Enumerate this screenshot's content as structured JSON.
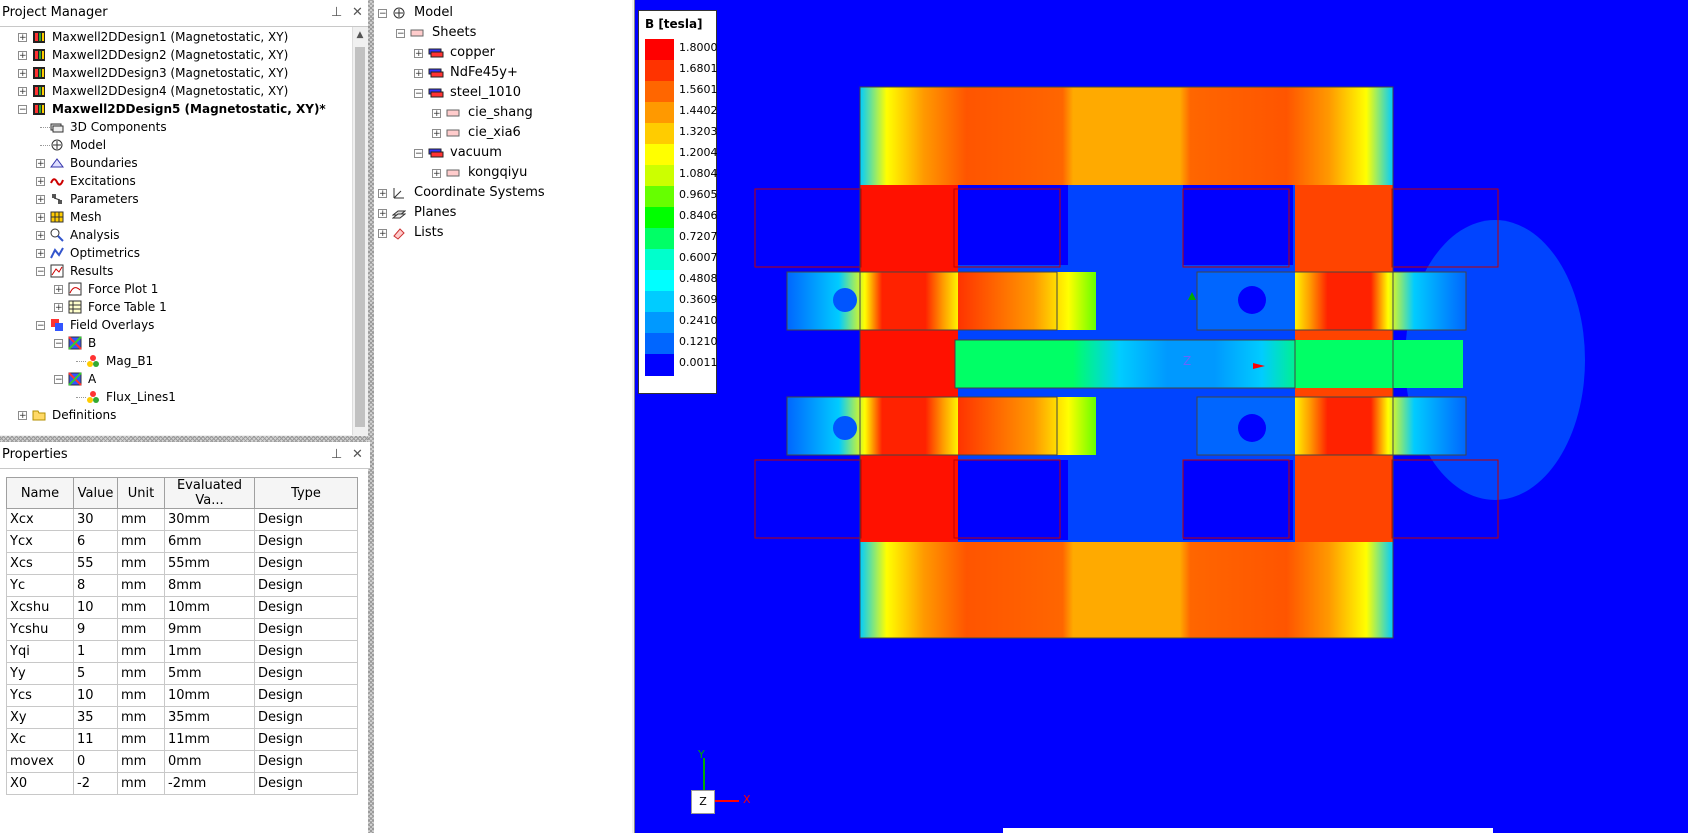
{
  "project_manager": {
    "title": "Project Manager",
    "designs": [
      {
        "label": "Maxwell2DDesign1 (Magnetostatic, XY)"
      },
      {
        "label": "Maxwell2DDesign2 (Magnetostatic, XY)"
      },
      {
        "label": "Maxwell2DDesign3 (Magnetostatic, XY)"
      },
      {
        "label": "Maxwell2DDesign4 (Magnetostatic, XY)"
      },
      {
        "label": "Maxwell2DDesign5 (Magnetostatic, XY)*"
      }
    ],
    "children": [
      {
        "label": "3D Components"
      },
      {
        "label": "Model"
      },
      {
        "label": "Boundaries"
      },
      {
        "label": "Excitations"
      },
      {
        "label": "Parameters"
      },
      {
        "label": "Mesh"
      },
      {
        "label": "Analysis"
      },
      {
        "label": "Optimetrics"
      },
      {
        "label": "Results"
      },
      {
        "label": "Force Plot 1"
      },
      {
        "label": "Force Table 1"
      },
      {
        "label": "Field Overlays"
      },
      {
        "label": "B"
      },
      {
        "label": "Mag_B1"
      },
      {
        "label": "A"
      },
      {
        "label": "Flux_Lines1"
      },
      {
        "label": "Definitions"
      }
    ]
  },
  "properties": {
    "title": "Properties",
    "columns": [
      "Name",
      "Value",
      "Unit",
      "Evaluated Va...",
      "Type"
    ],
    "rows": [
      [
        "Xcx",
        "30",
        "mm",
        "30mm",
        "Design"
      ],
      [
        "Ycx",
        "6",
        "mm",
        "6mm",
        "Design"
      ],
      [
        "Xcs",
        "55",
        "mm",
        "55mm",
        "Design"
      ],
      [
        "Yc",
        "8",
        "mm",
        "8mm",
        "Design"
      ],
      [
        "Xcshu",
        "10",
        "mm",
        "10mm",
        "Design"
      ],
      [
        "Ycshu",
        "9",
        "mm",
        "9mm",
        "Design"
      ],
      [
        "Yqi",
        "1",
        "mm",
        "1mm",
        "Design"
      ],
      [
        "Yy",
        "5",
        "mm",
        "5mm",
        "Design"
      ],
      [
        "Ycs",
        "10",
        "mm",
        "10mm",
        "Design"
      ],
      [
        "Xy",
        "35",
        "mm",
        "35mm",
        "Design"
      ],
      [
        "Xc",
        "11",
        "mm",
        "11mm",
        "Design"
      ],
      [
        "movex",
        "0",
        "mm",
        "0mm",
        "Design"
      ],
      [
        "X0",
        "-2",
        "mm",
        "-2mm",
        "Design"
      ]
    ]
  },
  "model_tree": {
    "items": [
      {
        "label": "Model"
      },
      {
        "label": "Sheets"
      },
      {
        "label": "copper"
      },
      {
        "label": "NdFe45y+"
      },
      {
        "label": "steel_1010"
      },
      {
        "label": "cie_shang"
      },
      {
        "label": "cie_xia6"
      },
      {
        "label": "vacuum"
      },
      {
        "label": "kongqiyu"
      },
      {
        "label": "Coordinate Systems"
      },
      {
        "label": "Planes"
      },
      {
        "label": "Lists"
      }
    ]
  },
  "legend": {
    "title": "B [tesla]",
    "levels": [
      "1.8000",
      "1.6801",
      "1.5601",
      "1.4402",
      "1.3203",
      "1.2004",
      "1.0804",
      "0.9605",
      "0.8406",
      "0.7207",
      "0.6007",
      "0.4808",
      "0.3609",
      "0.2410",
      "0.1210",
      "0.0011"
    ],
    "colors": [
      "#ff0000",
      "#ff3300",
      "#ff6600",
      "#ff9900",
      "#ffcc00",
      "#ffff00",
      "#ccff00",
      "#66ff00",
      "#00ff00",
      "#00ff66",
      "#00ffcc",
      "#00ffff",
      "#00ccff",
      "#0099ff",
      "#0066ff",
      "#0000ff"
    ]
  },
  "axes": {
    "y": "Y",
    "x": "X",
    "z": "Z"
  },
  "colors": {
    "background": "#0000ff",
    "outline": "#c00000"
  }
}
